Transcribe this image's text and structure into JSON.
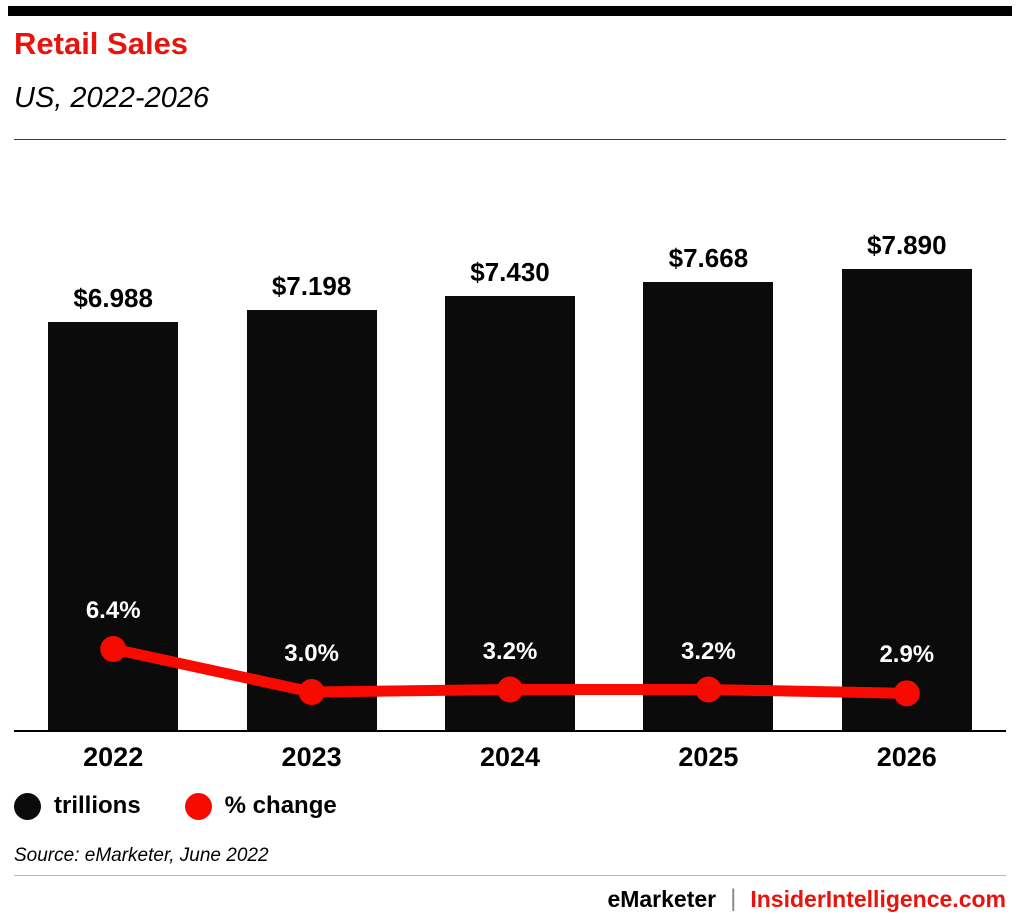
{
  "page": {
    "title": "Retail Sales",
    "subtitle": "US, 2022-2026",
    "source_note": "Source: eMarketer, June 2022",
    "footer": {
      "brand": "eMarketer",
      "separator": "|",
      "site": "InsiderIntelligence.com"
    }
  },
  "colors": {
    "accent_red": "#e8130c",
    "line_red": "#f70b00",
    "bar_black": "#0b0b0b"
  },
  "legend": [
    {
      "label": "trillions",
      "color": "#0b0b0b"
    },
    {
      "label": "% change",
      "color": "#f70b00"
    }
  ],
  "chart_data": {
    "type": "bar",
    "title": "Retail Sales, US, 2022-2026",
    "categories": [
      "2022",
      "2023",
      "2024",
      "2025",
      "2026"
    ],
    "series": [
      {
        "name": "trillions",
        "type": "bar",
        "unit": "USD trillions",
        "values": [
          6.988,
          7.198,
          7.43,
          7.668,
          7.89
        ],
        "labels": [
          "$6.988",
          "$7.198",
          "$7.430",
          "$7.668",
          "$7.890"
        ]
      },
      {
        "name": "% change",
        "type": "line",
        "unit": "percent",
        "values": [
          6.4,
          3.0,
          3.2,
          3.2,
          2.9
        ],
        "labels": [
          "6.4%",
          "3.0%",
          "3.2%",
          "3.2%",
          "2.9%"
        ]
      }
    ],
    "legend_position": "bottom-left",
    "grid": false,
    "bar_axis_range": [
      0,
      8.5
    ],
    "line_axis_range": [
      0,
      7
    ],
    "value_labels": "dollar values above bars in black; percent values above line points in white"
  }
}
